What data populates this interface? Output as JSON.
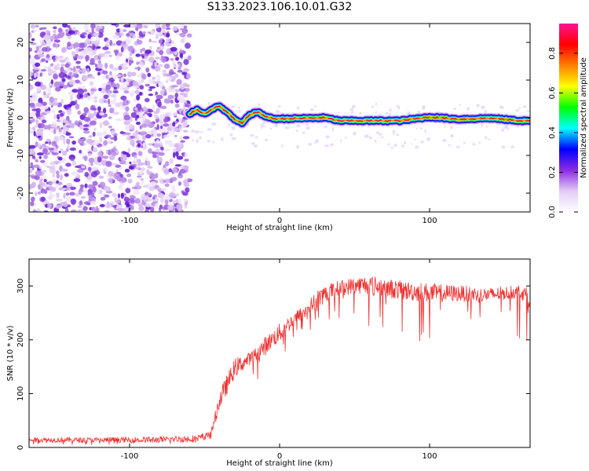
{
  "page": {
    "title": "S133.2023.106.10.01.G32"
  },
  "chart_data": [
    {
      "type": "heatmap",
      "title": "S133.2023.106.10.01.G32",
      "xlabel": "Height of straight line (km)",
      "ylabel": "Frequency (Hz)",
      "xlim": [
        -167,
        167
      ],
      "ylim": [
        -25,
        25
      ],
      "x_ticks": [
        -100,
        0,
        100
      ],
      "x_tick_labels": [
        "-100",
        "0",
        "100"
      ],
      "y_ticks": [
        -20,
        -10,
        0,
        10,
        20
      ],
      "y_tick_labels": [
        "-20",
        "-10",
        "0",
        "10",
        "20"
      ],
      "noise_region_x": [
        -167,
        -60
      ],
      "signal_ridge": {
        "x": [
          -60,
          -55,
          -50,
          -45,
          -40,
          -35,
          -30,
          -25,
          -20,
          -15,
          -10,
          -5,
          0,
          10,
          20,
          30,
          40,
          60,
          80,
          100,
          120,
          140,
          160,
          167
        ],
        "y": [
          1.0,
          2.2,
          1.0,
          2.4,
          3.0,
          1.5,
          -0.5,
          -1.5,
          0.8,
          1.5,
          0.5,
          -0.2,
          -0.3,
          -0.2,
          -0.1,
          0.0,
          -0.8,
          -0.8,
          -0.8,
          0.2,
          -0.4,
          -0.1,
          -0.8,
          -0.8
        ]
      },
      "grid": false,
      "colorbar": {
        "label": "Normalized spectral amplitude",
        "range": [
          0.0,
          0.95
        ],
        "ticks": [
          0.0,
          0.2,
          0.4,
          0.6,
          0.8
        ],
        "tick_labels": [
          "0.0",
          "0.2",
          "0.4",
          "0.6",
          "0.8"
        ],
        "colors": [
          "#ffffff",
          "#e3ccf5",
          "#8b2be2",
          "#0000ff",
          "#00ffff",
          "#00ff00",
          "#ffff00",
          "#ff8000",
          "#ff0000",
          "#ff1493"
        ]
      }
    },
    {
      "type": "line",
      "xlabel": "Height of straight line (km)",
      "ylabel": "SNR (10 * v/v)",
      "xlim": [
        -167,
        167
      ],
      "ylim": [
        0,
        350
      ],
      "x_ticks": [
        -100,
        0,
        100
      ],
      "x_tick_labels": [
        "-100",
        "0",
        "100"
      ],
      "y_ticks": [
        0,
        100,
        200,
        300
      ],
      "y_tick_labels": [
        "0",
        "100",
        "200",
        "300"
      ],
      "grid": false,
      "color": "#ee3030",
      "envelope": {
        "x": [
          -167,
          -120,
          -80,
          -55,
          -48,
          -45,
          -40,
          -35,
          -30,
          -25,
          -20,
          -15,
          -10,
          -5,
          0,
          5,
          10,
          15,
          20,
          25,
          30,
          40,
          50,
          60,
          80,
          100,
          120,
          140,
          160,
          167
        ],
        "upper": [
          20,
          20,
          22,
          25,
          30,
          40,
          110,
          140,
          170,
          175,
          180,
          190,
          210,
          220,
          235,
          245,
          255,
          265,
          280,
          295,
          305,
          315,
          320,
          325,
          315,
          310,
          305,
          300,
          305,
          300
        ],
        "mean": [
          12,
          12,
          12,
          14,
          20,
          30,
          80,
          110,
          140,
          150,
          160,
          170,
          180,
          195,
          205,
          220,
          235,
          245,
          255,
          270,
          280,
          290,
          295,
          295,
          285,
          280,
          280,
          278,
          285,
          270
        ],
        "lower": [
          5,
          5,
          6,
          8,
          10,
          15,
          35,
          60,
          90,
          100,
          110,
          125,
          135,
          150,
          160,
          175,
          190,
          205,
          215,
          225,
          235,
          240,
          230,
          220,
          200,
          190,
          200,
          210,
          200,
          190
        ]
      }
    }
  ]
}
